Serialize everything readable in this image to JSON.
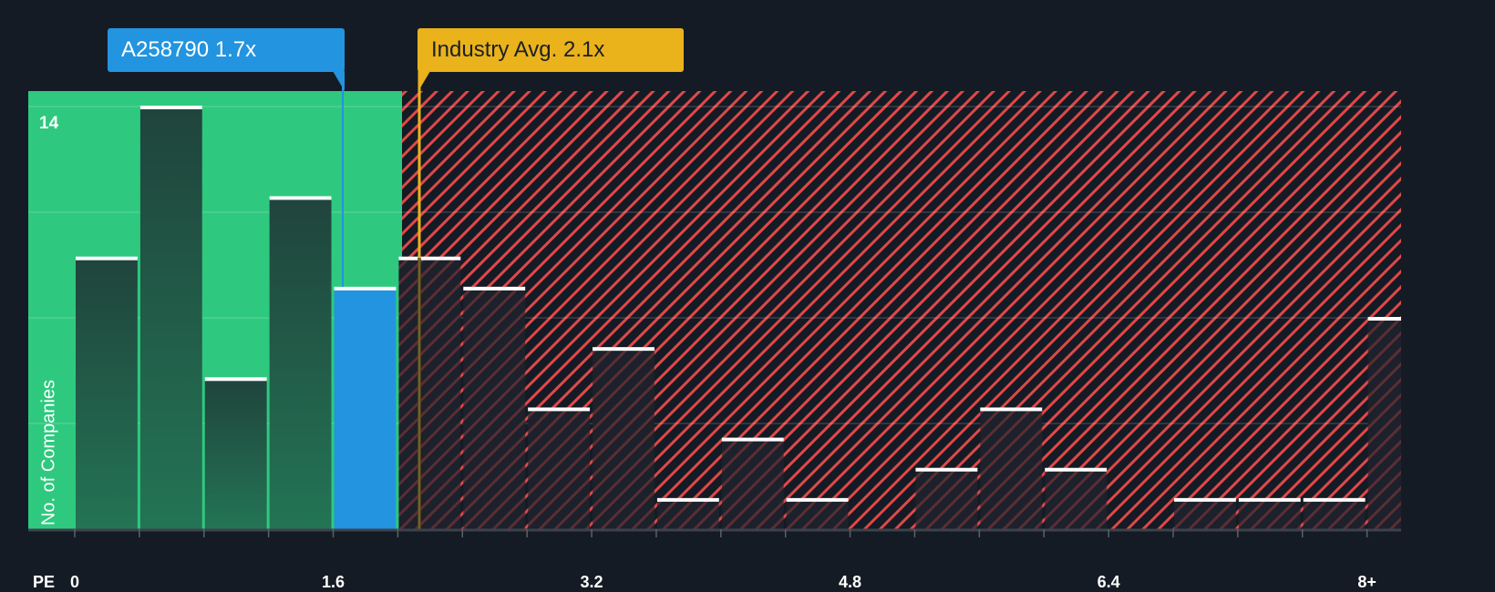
{
  "chart_data": {
    "type": "bar",
    "title": "",
    "xlabel": "PE",
    "ylabel": "No. of Companies",
    "x_tick_labels": [
      "0",
      "1.6",
      "3.2",
      "4.8",
      "6.4",
      "8+"
    ],
    "x_tick_values": [
      0,
      1.6,
      3.2,
      4.8,
      6.4,
      8
    ],
    "bin_width": 0.4,
    "categories": [
      "0-0.4",
      "0.4-0.8",
      "0.8-1.2",
      "1.2-1.6",
      "1.6-2.0",
      "2.0-2.4",
      "2.4-2.8",
      "2.8-3.2",
      "3.2-3.6",
      "3.6-4.0",
      "4.0-4.4",
      "4.4-4.8",
      "4.8-5.2",
      "5.2-5.6",
      "5.6-6.0",
      "6.0-6.4",
      "6.4-6.8",
      "6.8-7.2",
      "7.2-7.6",
      "7.6-8.0",
      "8+"
    ],
    "values": [
      9,
      14,
      5,
      11,
      8,
      9,
      8,
      4,
      6,
      1,
      3,
      1,
      0,
      2,
      4,
      2,
      0,
      1,
      1,
      1,
      7
    ],
    "highlight_bin_index": 4,
    "ylim": [
      0,
      14
    ],
    "y_max_label": "14",
    "gridlines": true,
    "grid_values": [
      3.5,
      7,
      10.5,
      14
    ],
    "annotations": [
      {
        "label": "A258790 1.7x",
        "value": 1.7,
        "color": "#2394df"
      },
      {
        "label": "Industry Avg. 2.1x",
        "value": 2.1,
        "color": "#eab21b"
      }
    ],
    "undervalued_region": {
      "from": 0,
      "to": 2.0,
      "color": "#2ec97f"
    },
    "overvalued_region": {
      "from": 2.0,
      "to": "8+",
      "color": "#e04848",
      "pattern": "diagonal-hatch"
    }
  },
  "callouts": {
    "company": "A258790 1.7x",
    "industry": "Industry Avg. 2.1x"
  },
  "axis": {
    "x_title": "PE",
    "y_title": "No. of Companies",
    "y_max": "14"
  },
  "colors": {
    "background": "#151b24",
    "green_region": "#2ec97f",
    "green_bar": "#214a40",
    "company_bar": "#2394df",
    "hatch": "#e04848",
    "dark_bar": "#1c212b",
    "industry_line": "#eab21b",
    "bar_cap": "#ffffff"
  }
}
